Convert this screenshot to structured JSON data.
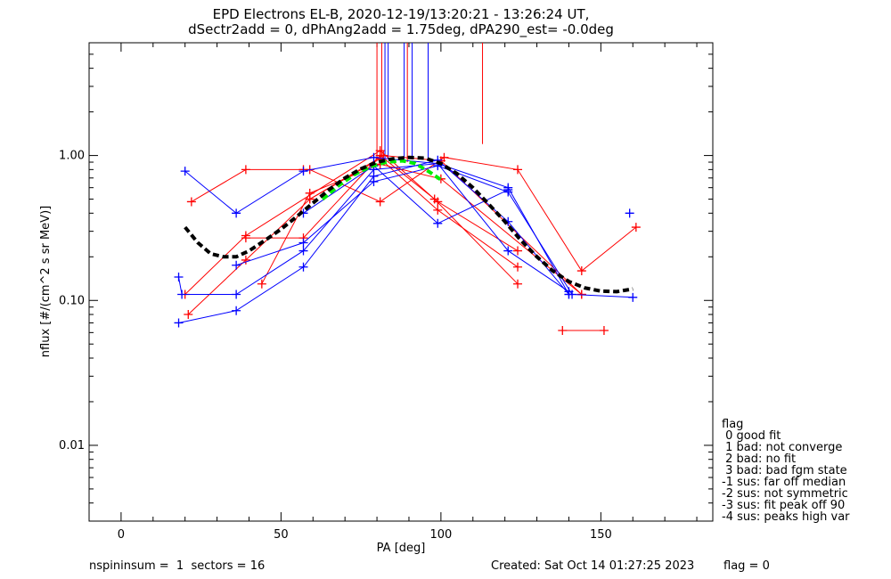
{
  "chart_data": {
    "type": "line",
    "title_line1": "EPD Electrons EL-B, 2020-12-19/13:20:21 - 13:26:24 UT,",
    "title_line2": "dSectr2add = 0, dPhAng2add = 1.75deg, dPA290_est=  -0.0deg",
    "xlabel": "PA [deg]",
    "ylabel": "nflux [#/(cm^2 s sr MeV)]",
    "xlim": [
      -10,
      185
    ],
    "ylim": [
      0.003,
      6
    ],
    "yscale": "log",
    "xticks": [
      0,
      50,
      100,
      150
    ],
    "xtick_labels": [
      "0",
      "50",
      "100",
      "150"
    ],
    "yticks": [
      0.01,
      0.1,
      1.0
    ],
    "ytick_labels": [
      "0.01",
      "0.10",
      "1.00"
    ],
    "colors": {
      "red": "#ff0000",
      "blue": "#0000ff",
      "fit": "#000000",
      "green": "#00ee00"
    },
    "series": [
      {
        "color": "red",
        "points": [
          [
            22,
            0.48
          ],
          [
            39,
            0.8
          ],
          [
            57,
            0.8
          ]
        ]
      },
      {
        "color": "red",
        "points": [
          [
            59,
            0.8
          ],
          [
            81,
            0.48
          ],
          [
            101,
            0.97
          ],
          [
            124,
            0.8
          ],
          [
            144,
            0.16
          ],
          [
            161,
            0.32
          ]
        ]
      },
      {
        "color": "red",
        "points": [
          [
            20,
            0.11
          ],
          [
            39,
            0.28
          ],
          [
            81,
            1.08
          ],
          [
            98,
            0.5
          ],
          [
            124,
            0.13
          ]
        ]
      },
      {
        "color": "red",
        "points": [
          [
            21,
            0.08
          ],
          [
            39,
            0.19
          ],
          [
            59,
            0.5
          ],
          [
            81,
            0.95
          ],
          [
            99,
            0.42
          ],
          [
            124,
            0.17
          ]
        ]
      },
      {
        "color": "red",
        "points": [
          [
            39,
            0.27
          ],
          [
            57,
            0.27
          ],
          [
            81,
            1.0
          ],
          [
            99,
            0.48
          ],
          [
            124,
            0.22
          ]
        ]
      },
      {
        "color": "red",
        "points": [
          [
            44,
            0.13
          ],
          [
            59,
            0.55
          ],
          [
            81,
            0.87
          ],
          [
            100,
            0.69
          ],
          [
            144,
            0.11
          ]
        ]
      },
      {
        "color": "red",
        "points": [
          [
            59,
            0.5
          ],
          [
            82,
            1.0
          ],
          [
            100,
            0.92
          ],
          [
            144,
            0.11
          ]
        ]
      },
      {
        "color": "red",
        "points": [
          [
            138,
            0.062
          ],
          [
            151,
            0.062
          ]
        ]
      },
      {
        "color": "blue",
        "points": [
          [
            20,
            0.78
          ],
          [
            36,
            0.4
          ],
          [
            57,
            0.78
          ],
          [
            79,
            0.97
          ],
          [
            99,
            0.88
          ],
          [
            121,
            0.6
          ],
          [
            140,
            0.11
          ]
        ]
      },
      {
        "color": "blue",
        "points": [
          [
            18,
            0.145
          ],
          [
            19,
            0.11
          ],
          [
            36,
            0.11
          ],
          [
            57,
            0.22
          ],
          [
            79,
            0.8
          ],
          [
            99,
            0.88
          ],
          [
            121,
            0.22
          ],
          [
            140,
            0.115
          ]
        ]
      },
      {
        "color": "blue",
        "points": [
          [
            18,
            0.07
          ],
          [
            36,
            0.085
          ],
          [
            57,
            0.17
          ],
          [
            79,
            0.72
          ],
          [
            99,
            0.93
          ],
          [
            121,
            0.35
          ],
          [
            140,
            0.11
          ]
        ]
      },
      {
        "color": "blue",
        "points": [
          [
            36,
            0.175
          ],
          [
            57,
            0.25
          ],
          [
            79,
            0.66
          ],
          [
            99,
            0.85
          ],
          [
            121,
            0.56
          ],
          [
            141,
            0.11
          ],
          [
            160,
            0.105
          ]
        ]
      },
      {
        "color": "blue",
        "points": [
          [
            57,
            0.4
          ],
          [
            79,
            0.85
          ],
          [
            99,
            0.34
          ],
          [
            121,
            0.58
          ]
        ]
      },
      {
        "color": "blue",
        "points": [
          [
            159,
            0.4
          ]
        ]
      }
    ],
    "fit_curve": [
      [
        20,
        0.32
      ],
      [
        24,
        0.25
      ],
      [
        28,
        0.21
      ],
      [
        32,
        0.2
      ],
      [
        36,
        0.2
      ],
      [
        40,
        0.22
      ],
      [
        45,
        0.26
      ],
      [
        50,
        0.31
      ],
      [
        55,
        0.38
      ],
      [
        60,
        0.47
      ],
      [
        65,
        0.58
      ],
      [
        70,
        0.7
      ],
      [
        75,
        0.81
      ],
      [
        80,
        0.9
      ],
      [
        85,
        0.95
      ],
      [
        90,
        0.97
      ],
      [
        95,
        0.96
      ],
      [
        100,
        0.88
      ],
      [
        105,
        0.75
      ],
      [
        110,
        0.6
      ],
      [
        115,
        0.46
      ],
      [
        120,
        0.35
      ],
      [
        125,
        0.26
      ],
      [
        130,
        0.2
      ],
      [
        135,
        0.16
      ],
      [
        140,
        0.135
      ],
      [
        145,
        0.122
      ],
      [
        150,
        0.116
      ],
      [
        155,
        0.115
      ],
      [
        160,
        0.12
      ]
    ],
    "green_curve": [
      [
        63,
        0.5
      ],
      [
        68,
        0.62
      ],
      [
        73,
        0.74
      ],
      [
        78,
        0.84
      ],
      [
        83,
        0.9
      ],
      [
        88,
        0.92
      ],
      [
        92,
        0.88
      ],
      [
        96,
        0.78
      ],
      [
        100,
        0.68
      ]
    ],
    "vertical_lines": [
      {
        "x": 80,
        "y_bottom": 0.95,
        "color": "red"
      },
      {
        "x": 81.5,
        "y_bottom": 1.0,
        "color": "red"
      },
      {
        "x": 82.5,
        "y_bottom": 0.9,
        "color": "blue"
      },
      {
        "x": 83.5,
        "y_bottom": 0.95,
        "color": "blue"
      },
      {
        "x": 88.5,
        "y_bottom": 0.95,
        "color": "blue"
      },
      {
        "x": 89.5,
        "y_bottom": 0.9,
        "color": "red"
      },
      {
        "x": 91,
        "y_bottom": 0.95,
        "color": "blue"
      },
      {
        "x": 96,
        "y_bottom": 0.95,
        "color": "blue"
      },
      {
        "x": 113,
        "y_bottom": 1.2,
        "color": "red"
      }
    ]
  },
  "legend": {
    "title": "flag",
    "items": [
      " 0 good fit",
      " 1 bad: not converge",
      " 2 bad: no fit",
      " 3 bad: bad fgm state",
      "-1 sus: far off median",
      "-2 sus: not symmetric",
      "-3 sus: fit peak off 90",
      "-4 sus: peaks high var"
    ]
  },
  "footer": {
    "left": "nspininsum =  1  sectors = 16",
    "created": "Created: Sat Oct 14 01:27:25 2023",
    "flag": "flag = 0"
  }
}
